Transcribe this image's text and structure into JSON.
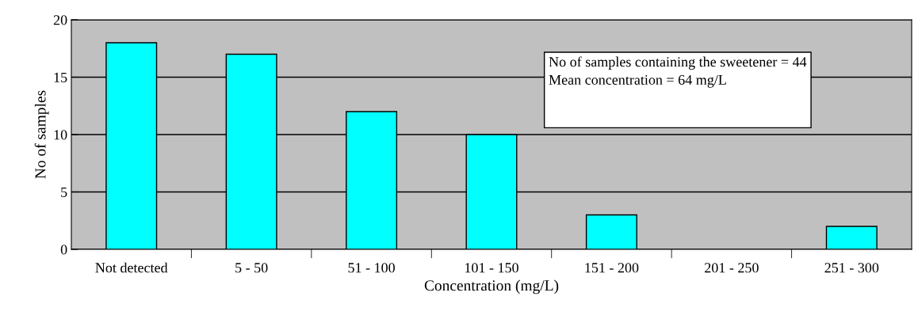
{
  "chart_data": {
    "type": "bar",
    "xlabel": "Concentration (mg/L)",
    "ylabel": "No of samples",
    "categories": [
      "Not detected",
      "5 - 50",
      "51 - 100",
      "101 - 150",
      "151 - 200",
      "201 - 250",
      "251 - 300"
    ],
    "values": [
      18,
      17,
      12,
      10,
      3,
      0,
      2
    ],
    "color": "#00ffff",
    "ylim": [
      0,
      20
    ],
    "yticks": [
      0,
      5,
      10,
      15,
      20
    ],
    "grid": "y",
    "annotations": [
      "No of samples containing the sweetener = 44",
      "Mean concentration = 64 mg/L"
    ]
  }
}
